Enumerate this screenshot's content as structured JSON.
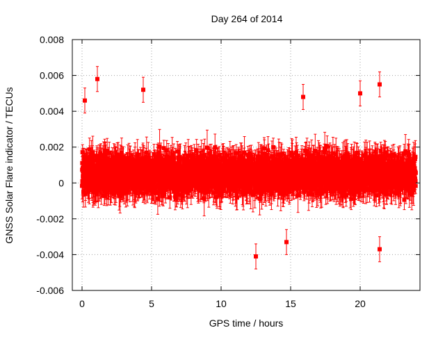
{
  "chart_data": {
    "type": "scatter",
    "title": "Day 264 of 2014",
    "xlabel": "GPS time / hours",
    "ylabel": "GNSS Solar Flare indicator / TECUs",
    "xlim": [
      -0.7,
      24.3
    ],
    "ylim": [
      -0.006,
      0.008
    ],
    "x_ticks": [
      0,
      5,
      10,
      15,
      20
    ],
    "x_tick_labels": [
      "0",
      "5",
      "10",
      "15",
      "20"
    ],
    "y_ticks": [
      -0.006,
      -0.004,
      -0.002,
      0,
      0.002,
      0.004,
      0.006,
      0.008
    ],
    "y_tick_labels": [
      "-0.006",
      "-0.004",
      "-0.002",
      "0",
      "0.002",
      "0.004",
      "0.006",
      "0.008"
    ],
    "grid": true,
    "series": [
      {
        "name": "GNSS Solar Flare indicator",
        "color": "#ff0000",
        "marker": "square",
        "error_bars": true,
        "sampling_interval_hours": 0.0083,
        "time_range_hours": [
          0,
          24
        ],
        "typical_value_range": [
          -0.003,
          0.004
        ],
        "center_value": 0.0005,
        "typical_error": 0.0007,
        "notable_points": [
          {
            "x": 0.2,
            "y": 0.0046
          },
          {
            "x": 1.1,
            "y": 0.0058
          },
          {
            "x": 4.4,
            "y": 0.0052
          },
          {
            "x": 12.5,
            "y": -0.0041
          },
          {
            "x": 14.7,
            "y": -0.0033
          },
          {
            "x": 15.9,
            "y": 0.0048
          },
          {
            "x": 20.0,
            "y": 0.005
          },
          {
            "x": 21.4,
            "y": 0.0055
          },
          {
            "x": 21.4,
            "y": -0.0037
          }
        ]
      }
    ]
  }
}
